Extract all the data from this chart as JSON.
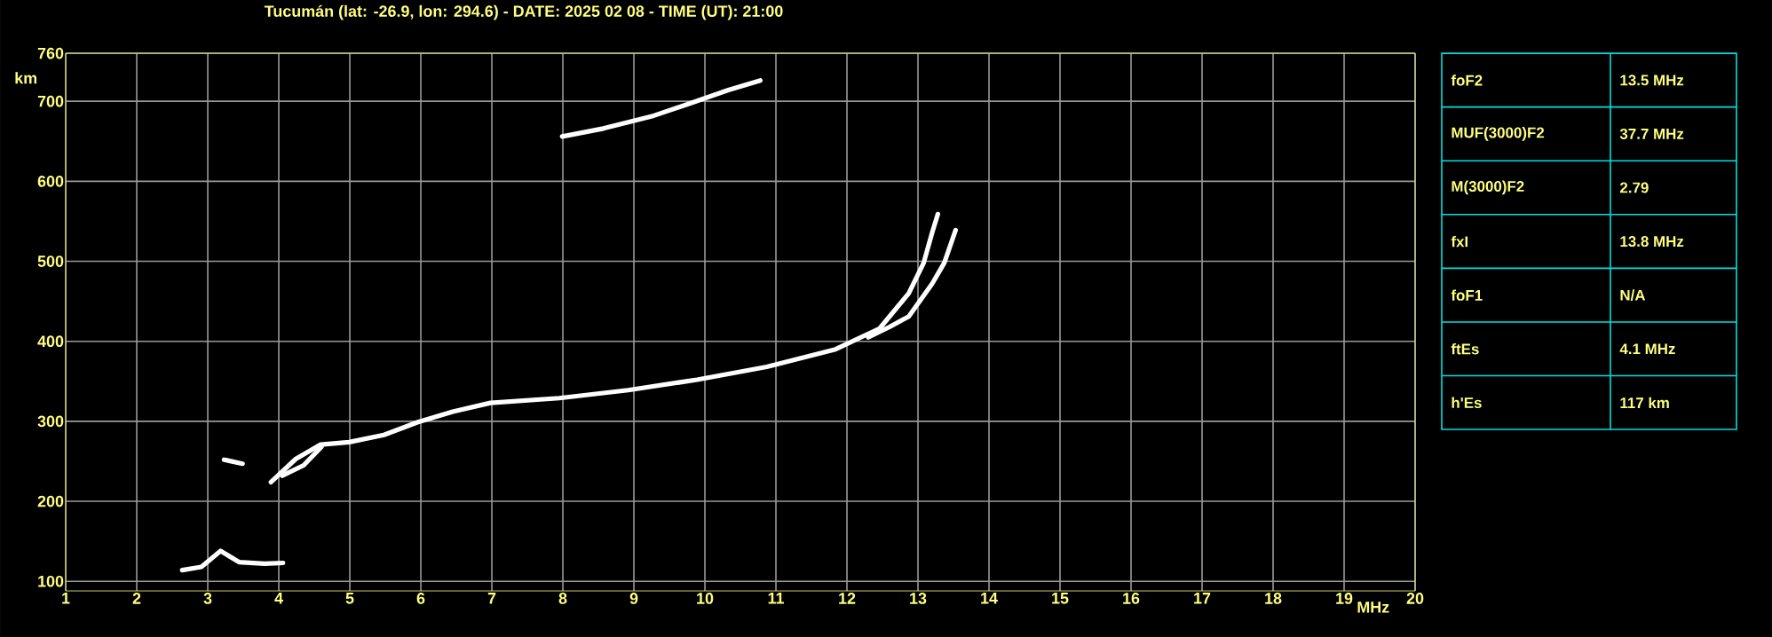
{
  "chart_data": [
    {
      "type": "line",
      "title": "Tucumán (lat: -26.9, lon: 294.6) - DATE: 2025 02 08 - TIME (UT): 21:00",
      "xlabel": "MHz",
      "ylabel": "km",
      "xlim": [
        1,
        20
      ],
      "ylim": [
        88,
        760
      ],
      "xticks": [
        1,
        2,
        3,
        4,
        5,
        6,
        7,
        8,
        9,
        10,
        11,
        12,
        13,
        14,
        15,
        16,
        17,
        18,
        19,
        20
      ],
      "yticks": [
        100,
        200,
        300,
        400,
        500,
        600,
        700,
        760
      ],
      "grid": true,
      "marker": "none",
      "line_style": "solid",
      "series": [
        {
          "color": "#ffffff",
          "x": [
            3.89,
            4.24,
            4.59,
            4.99,
            5.48,
            5.96,
            6.45,
            6.98,
            7.95,
            8.92,
            9.89,
            10.87,
            11.84,
            12.46,
            12.87,
            13.08,
            13.2,
            13.28
          ],
          "values": [
            224,
            253,
            271,
            274,
            283,
            299,
            312,
            323,
            329,
            339,
            352,
            368,
            390,
            416,
            460,
            498,
            536,
            559
          ]
        },
        {
          "color": "#ffffff",
          "x": [
            12.3,
            12.6,
            12.87,
            13.2,
            13.37,
            13.53
          ],
          "values": [
            405,
            418,
            431,
            472,
            498,
            539
          ]
        },
        {
          "color": "#ffffff",
          "x": [
            4.05,
            4.35,
            4.6
          ],
          "values": [
            232,
            245,
            268
          ]
        },
        {
          "color": "#ffffff",
          "x": [
            2.64,
            2.91,
            3.18,
            3.44,
            3.8,
            4.06
          ],
          "values": [
            114,
            118,
            138,
            124,
            122,
            123
          ]
        },
        {
          "color": "#ffffff",
          "x": [
            3.23,
            3.49
          ],
          "values": [
            252,
            247
          ]
        },
        {
          "color": "#ffffff",
          "x": [
            7.99,
            8.57,
            9.28,
            9.81,
            10.33,
            10.78
          ],
          "values": [
            656,
            666,
            682,
            698,
            714,
            726
          ]
        }
      ]
    },
    {
      "type": "other",
      "annotations": [
        "foF2",
        "13.5 MHz",
        "MUF(3000)F2",
        "37.7 MHz",
        "M(3000)F2",
        "2.79",
        "fxI",
        "13.8 MHz",
        "foF1",
        "N/A",
        "ftEs",
        "4.1 MHz",
        "h'Es",
        "117 km"
      ]
    }
  ]
}
